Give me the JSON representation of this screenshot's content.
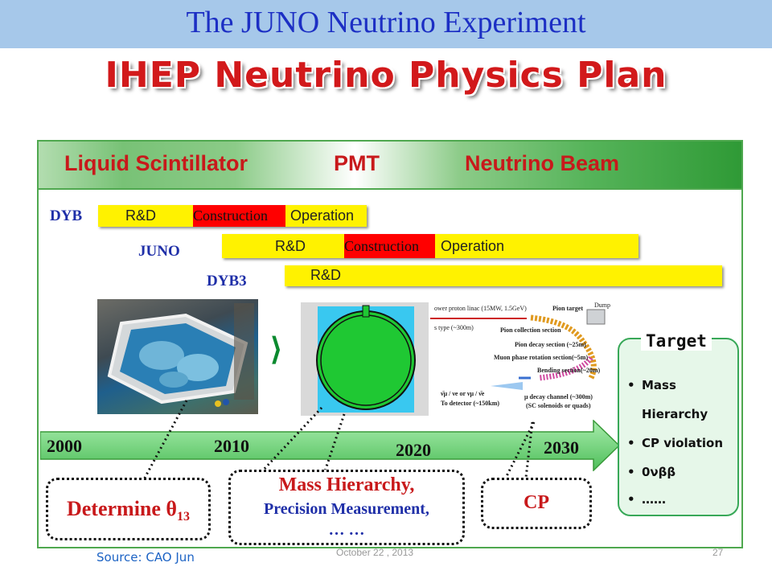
{
  "header": {
    "title": "The JUNO Neutrino Experiment"
  },
  "main_title": "IHEP Neutrino Physics Plan",
  "categories": [
    "Liquid Scintillator",
    "PMT",
    "Neutrino Beam"
  ],
  "schedule": {
    "rows": [
      {
        "name": "DYB",
        "segments": [
          {
            "label": "R&D"
          },
          {
            "label": "Construction"
          },
          {
            "label": "Operation"
          }
        ]
      },
      {
        "name": "JUNO",
        "segments": [
          {
            "label": "R&D"
          },
          {
            "label": "Construction"
          },
          {
            "label": "Operation"
          }
        ]
      },
      {
        "name": "DYB3",
        "segments": [
          {
            "label": "R&D"
          }
        ]
      }
    ],
    "colors": {
      "yellow": "#fff200",
      "red": "#ff0000"
    }
  },
  "beam": {
    "proton_linac": "ower proton linac (15MW, 1.5GeV)",
    "type": "s type (~300m)",
    "pion_target": "Pion target",
    "dump": "Dump",
    "pion_collection": "Pion collection section",
    "pion_decay": "Pion decay section (~25m)",
    "muon_rotation": "Muon phase rotation section(~5m)",
    "bending": "Bending section(~20m)",
    "decay_channel": "μ decay channel (~300m)",
    "solenoids": "(SC solenoids or quads)",
    "nu_line": "ν̄μ / νe or νμ / ν̄e",
    "to_detector": "To detector (~150km)"
  },
  "timeline": {
    "years": [
      "2000",
      "2010",
      "2020",
      "2030"
    ],
    "color": "#5fc868"
  },
  "target": {
    "title": "Target",
    "items": [
      "Mass",
      "Hierarchy",
      "CP violation",
      "0νββ",
      "……"
    ]
  },
  "callouts": {
    "theta": {
      "main": "Determine θ",
      "sub": "13"
    },
    "mass": {
      "line1": "Mass Hierarchy,",
      "line2": "Precision Measurement,",
      "line3": "… …"
    },
    "cp": "CP"
  },
  "footer": {
    "source": "Source: CAO Jun",
    "date": "October 22 , 2013",
    "page": "27"
  }
}
